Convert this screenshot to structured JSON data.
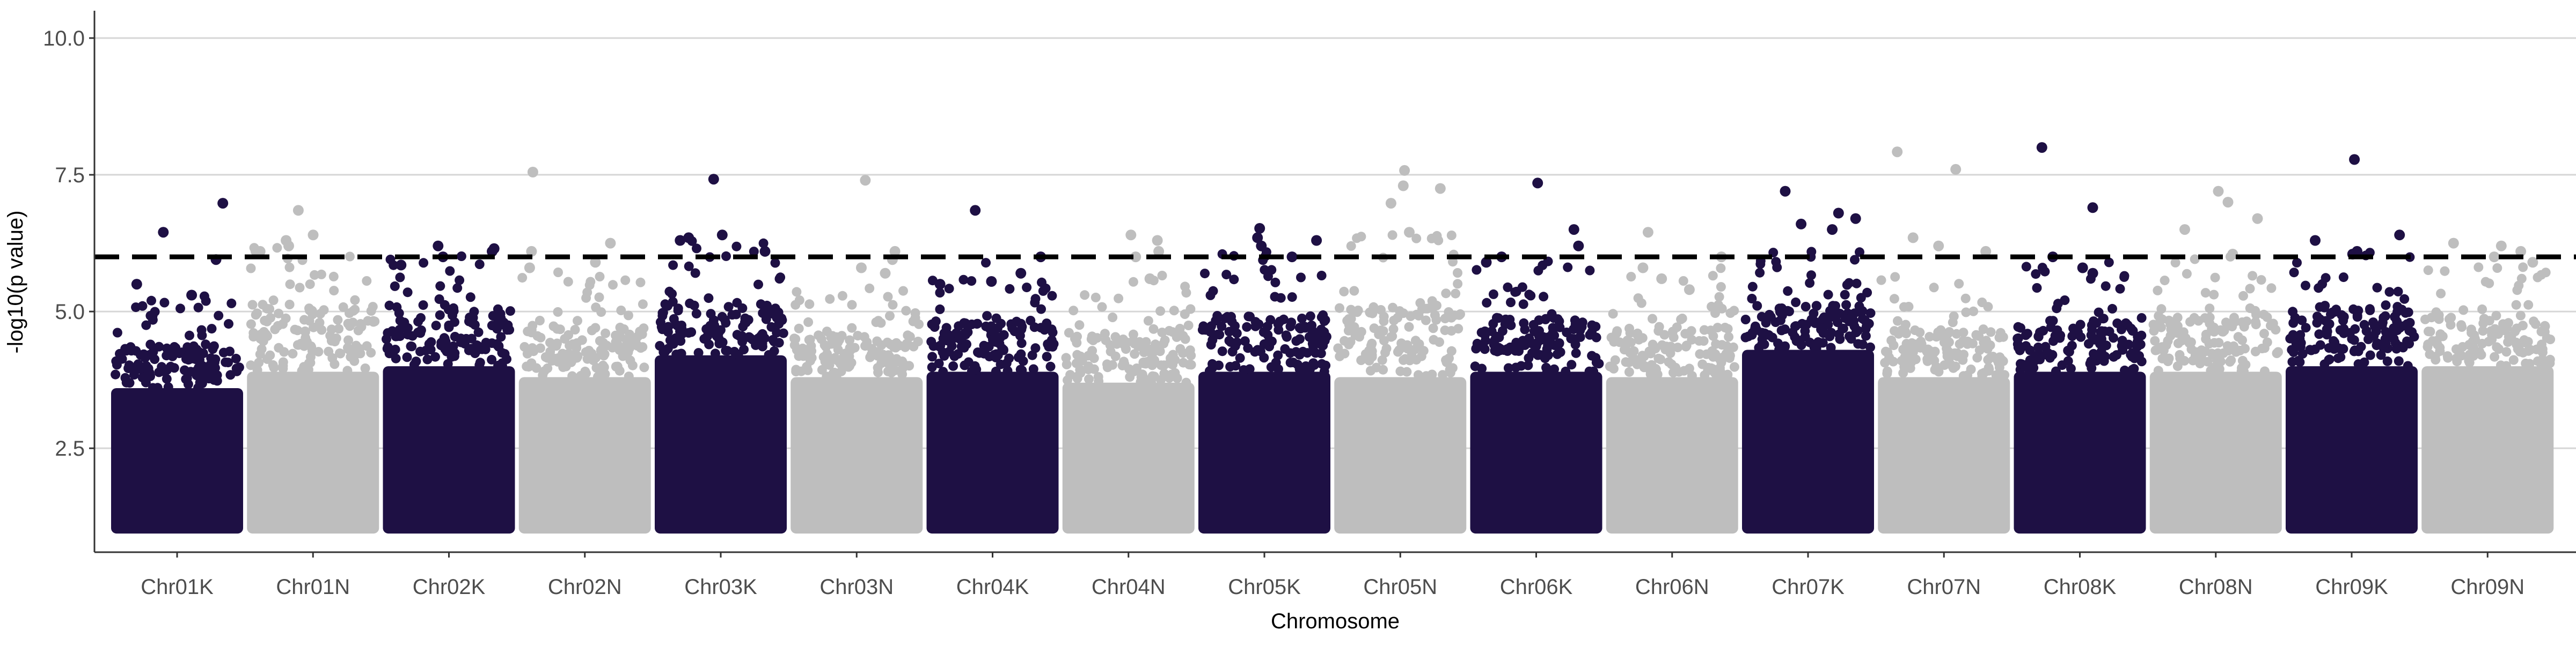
{
  "chart_data": {
    "type": "scatter",
    "subtype": "manhattan",
    "title": "",
    "xlabel": "Chromosome",
    "ylabel": "-log10(p value)",
    "ylim": [
      0.6,
      10.5
    ],
    "yticks": [
      2.5,
      5.0,
      7.5,
      10.0
    ],
    "ytick_labels": [
      "2.5",
      "5.0",
      "7.5",
      "10.0"
    ],
    "grid": "horizontal major lines",
    "legend": "none",
    "threshold": {
      "y": 6.0,
      "style": "dashed",
      "color": "#000000"
    },
    "point_floor": 1.0,
    "colors": {
      "odd": "#1e1044",
      "even": "#bebebe"
    },
    "categories": [
      "Chr01K",
      "Chr01N",
      "Chr02K",
      "Chr02N",
      "Chr03K",
      "Chr03N",
      "Chr04K",
      "Chr04N",
      "Chr05K",
      "Chr05N",
      "Chr06K",
      "Chr06N",
      "Chr07K",
      "Chr07N",
      "Chr08K",
      "Chr08N",
      "Chr09K",
      "Chr09N"
    ],
    "series": [
      {
        "category": "Chr01K",
        "color": "dark",
        "dense_top": 3.6,
        "upper_band": 5.0,
        "top_points": [
          6.45,
          6.98,
          5.95,
          5.5,
          5.3
        ]
      },
      {
        "category": "Chr01N",
        "color": "light",
        "dense_top": 3.9,
        "upper_band": 6.0,
        "top_points": [
          6.85,
          6.4,
          6.3,
          6.2,
          6.1
        ]
      },
      {
        "category": "Chr02K",
        "color": "dark",
        "dense_top": 4.0,
        "upper_band": 5.9,
        "top_points": [
          6.2,
          6.15,
          6.1,
          6.0,
          5.85
        ]
      },
      {
        "category": "Chr02N",
        "color": "light",
        "dense_top": 3.8,
        "upper_band": 5.5,
        "top_points": [
          7.55,
          6.25,
          6.1,
          5.9,
          5.8
        ]
      },
      {
        "category": "Chr03K",
        "color": "dark",
        "dense_top": 4.2,
        "upper_band": 6.0,
        "top_points": [
          7.42,
          6.4,
          6.35,
          6.3,
          6.1
        ]
      },
      {
        "category": "Chr03N",
        "color": "light",
        "dense_top": 3.8,
        "upper_band": 5.2,
        "top_points": [
          7.4,
          6.1,
          5.95,
          5.8,
          5.7
        ]
      },
      {
        "category": "Chr04K",
        "color": "dark",
        "dense_top": 3.9,
        "upper_band": 5.6,
        "top_points": [
          6.85,
          6.0,
          5.7,
          5.55,
          5.5
        ]
      },
      {
        "category": "Chr04N",
        "color": "light",
        "dense_top": 3.7,
        "upper_band": 5.4,
        "top_points": [
          6.4,
          6.3,
          6.1,
          6.0,
          5.6
        ]
      },
      {
        "category": "Chr05K",
        "color": "dark",
        "dense_top": 3.9,
        "upper_band": 5.8,
        "top_points": [
          6.52,
          6.35,
          6.3,
          6.2,
          6.0
        ]
      },
      {
        "category": "Chr05N",
        "color": "light",
        "dense_top": 3.8,
        "upper_band": 6.2,
        "top_points": [
          7.58,
          7.3,
          7.25,
          6.98,
          6.45
        ]
      },
      {
        "category": "Chr06K",
        "color": "dark",
        "dense_top": 3.9,
        "upper_band": 5.7,
        "top_points": [
          7.35,
          6.5,
          6.2,
          6.0,
          5.9
        ]
      },
      {
        "category": "Chr06N",
        "color": "light",
        "dense_top": 3.8,
        "upper_band": 5.5,
        "top_points": [
          6.45,
          6.0,
          5.8,
          5.6,
          5.4
        ]
      },
      {
        "category": "Chr07K",
        "color": "dark",
        "dense_top": 4.3,
        "upper_band": 5.8,
        "top_points": [
          7.2,
          6.8,
          6.7,
          6.6,
          6.5
        ]
      },
      {
        "category": "Chr07N",
        "color": "light",
        "dense_top": 3.8,
        "upper_band": 5.4,
        "top_points": [
          7.92,
          7.6,
          6.35,
          6.2,
          6.1
        ]
      },
      {
        "category": "Chr08K",
        "color": "dark",
        "dense_top": 3.9,
        "upper_band": 5.6,
        "top_points": [
          8.0,
          6.9,
          6.0,
          5.8,
          5.7
        ]
      },
      {
        "category": "Chr08N",
        "color": "light",
        "dense_top": 3.9,
        "upper_band": 5.8,
        "top_points": [
          7.2,
          7.0,
          6.7,
          6.5,
          6.05
        ]
      },
      {
        "category": "Chr09K",
        "color": "dark",
        "dense_top": 4.0,
        "upper_band": 6.0,
        "top_points": [
          7.78,
          6.4,
          6.3,
          6.1,
          6.05
        ]
      },
      {
        "category": "Chr09N",
        "color": "light",
        "dense_top": 4.0,
        "upper_band": 5.6,
        "top_points": [
          6.25,
          6.2,
          6.1,
          6.0,
          5.9
        ]
      }
    ]
  }
}
